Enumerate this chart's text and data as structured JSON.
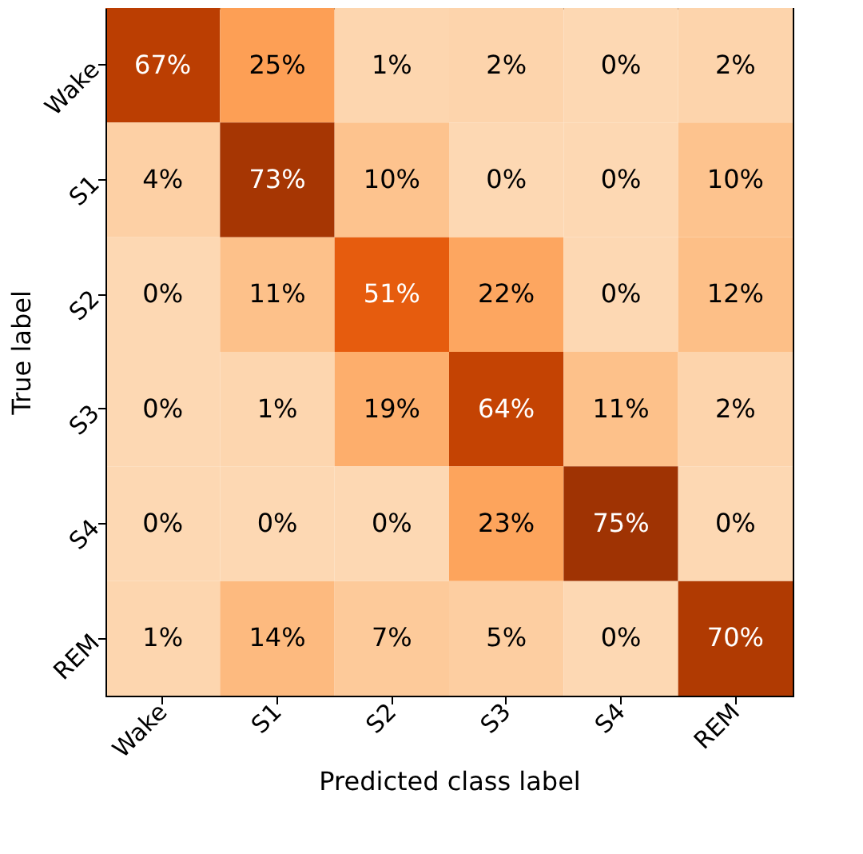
{
  "chart_data": {
    "type": "heatmap",
    "xlabel": "Predicted class label",
    "ylabel": "True label",
    "categories": [
      "Wake",
      "S1",
      "S2",
      "S3",
      "S4",
      "REM"
    ],
    "y_categories": [
      "Wake",
      "S1",
      "S2",
      "S3",
      "S4",
      "REM"
    ],
    "cells": [
      [
        67,
        25,
        1,
        2,
        0,
        2
      ],
      [
        4,
        73,
        10,
        0,
        0,
        10
      ],
      [
        0,
        11,
        51,
        22,
        0,
        12
      ],
      [
        0,
        1,
        19,
        64,
        11,
        2
      ],
      [
        0,
        0,
        0,
        23,
        75,
        0
      ],
      [
        1,
        14,
        7,
        5,
        0,
        70
      ]
    ],
    "cell_labels": [
      [
        "67%",
        "25%",
        "1%",
        "2%",
        "0%",
        "2%"
      ],
      [
        "4%",
        "73%",
        "10%",
        "0%",
        "0%",
        "10%"
      ],
      [
        "0%",
        "11%",
        "51%",
        "22%",
        "0%",
        "12%"
      ],
      [
        "0%",
        "1%",
        "19%",
        "64%",
        "11%",
        "2%"
      ],
      [
        "0%",
        "0%",
        "0%",
        "23%",
        "75%",
        "0%"
      ],
      [
        "1%",
        "14%",
        "7%",
        "5%",
        "0%",
        "70%"
      ]
    ]
  }
}
